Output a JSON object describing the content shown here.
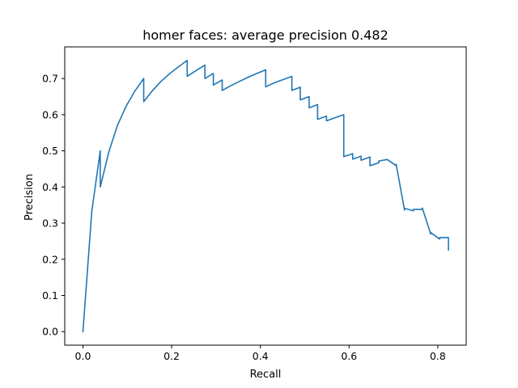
{
  "chart_data": {
    "type": "line",
    "title": "homer faces: average precision 0.482",
    "xlabel": "Recall",
    "ylabel": "Precision",
    "xlim": [
      -0.041,
      0.864
    ],
    "ylim": [
      -0.0375,
      0.7875
    ],
    "xticks": [
      0.0,
      0.2,
      0.4,
      0.6,
      0.8
    ],
    "yticks": [
      0.0,
      0.1,
      0.2,
      0.3,
      0.4,
      0.5,
      0.6,
      0.7
    ],
    "xtick_labels": [
      "0.0",
      "0.2",
      "0.4",
      "0.6",
      "0.8"
    ],
    "ytick_labels": [
      "0.0",
      "0.1",
      "0.2",
      "0.3",
      "0.4",
      "0.5",
      "0.6",
      "0.7"
    ],
    "grid": false,
    "line_color": "#1f77b4",
    "series": [
      {
        "x": [
          0.0,
          0.02,
          0.039,
          0.039,
          0.059,
          0.078,
          0.098,
          0.118,
          0.137,
          0.137,
          0.157,
          0.176,
          0.196,
          0.216,
          0.235,
          0.235,
          0.255,
          0.275,
          0.275,
          0.294,
          0.294,
          0.314,
          0.314,
          0.333,
          0.353,
          0.373,
          0.392,
          0.412,
          0.412,
          0.431,
          0.451,
          0.471,
          0.471,
          0.49,
          0.49,
          0.51,
          0.51,
          0.529,
          0.529,
          0.549,
          0.549,
          0.569,
          0.588,
          0.588,
          0.608,
          0.608,
          0.627,
          0.627,
          0.647,
          0.647,
          0.667,
          0.667,
          0.686,
          0.706,
          0.706,
          0.725,
          0.725,
          0.745,
          0.745,
          0.765,
          0.765,
          0.784,
          0.784,
          0.804,
          0.804,
          0.824,
          0.824
        ],
        "y": [
          0.0,
          0.333,
          0.5,
          0.4,
          0.5,
          0.571,
          0.625,
          0.667,
          0.7,
          0.636,
          0.667,
          0.692,
          0.714,
          0.733,
          0.75,
          0.706,
          0.722,
          0.737,
          0.7,
          0.714,
          0.682,
          0.696,
          0.667,
          0.68,
          0.692,
          0.704,
          0.714,
          0.724,
          0.677,
          0.688,
          0.697,
          0.706,
          0.667,
          0.676,
          0.641,
          0.65,
          0.619,
          0.628,
          0.587,
          0.596,
          0.583,
          0.592,
          0.6,
          0.484,
          0.492,
          0.477,
          0.485,
          0.474,
          0.483,
          0.459,
          0.467,
          0.472,
          0.476,
          0.459,
          0.463,
          0.336,
          0.341,
          0.334,
          0.338,
          0.338,
          0.342,
          0.27,
          0.274,
          0.256,
          0.26,
          0.26,
          0.226
        ]
      }
    ]
  }
}
